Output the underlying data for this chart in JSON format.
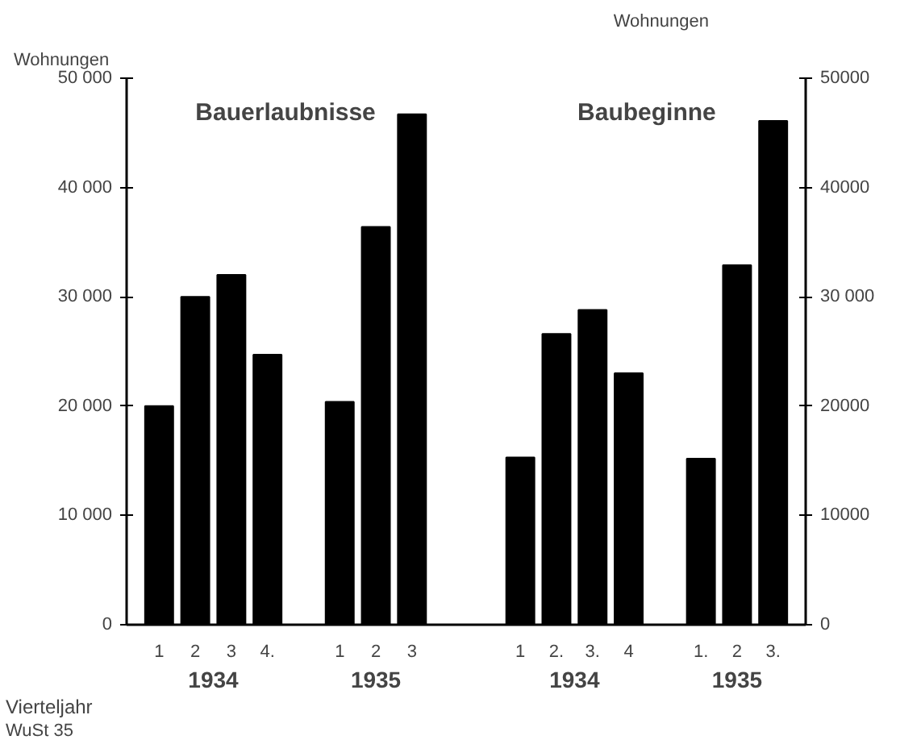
{
  "chart_data": {
    "type": "bar",
    "categories": [
      "1",
      "2",
      "3",
      "4.",
      null,
      "1",
      "2",
      "3",
      null,
      null,
      "1",
      "2.",
      "3.",
      "4",
      null,
      "1.",
      "2",
      "3."
    ],
    "series": [
      {
        "color": "#000000",
        "values": [
          20000,
          30000,
          32000,
          24700,
          null,
          20400,
          36400,
          46700,
          null,
          null,
          null,
          null,
          null,
          null,
          null,
          null,
          null,
          null
        ]
      },
      {
        "color": "#000000",
        "values": [
          null,
          null,
          null,
          null,
          null,
          null,
          null,
          null,
          null,
          null,
          15300,
          26600,
          28800,
          23000,
          null,
          15200,
          32900,
          46100
        ]
      }
    ],
    "ylabel": "Wohnungen",
    "y2label": "Wohnungen",
    "xlabel": "Vierteljahr",
    "ylim": [
      0,
      50000
    ],
    "yticks": [
      {
        "value": 0,
        "label": "0"
      },
      {
        "value": 10000,
        "label": "10 000"
      },
      {
        "value": 20000,
        "label": "20 000"
      },
      {
        "value": 30000,
        "label": "30 000"
      },
      {
        "value": 40000,
        "label": "40 000"
      },
      {
        "value": 50000,
        "label": "50 000"
      }
    ],
    "y2lim": [
      0,
      50000
    ],
    "y2ticks": [
      0,
      10000,
      20000,
      {
        "value": 30000,
        "label": "30 000"
      },
      40000,
      50000
    ],
    "annotations": [
      "Bauerlaubnisse",
      "Baubeginne",
      "1934",
      "1935",
      "1934",
      "1935",
      "WuSt 35"
    ],
    "grid": false
  }
}
